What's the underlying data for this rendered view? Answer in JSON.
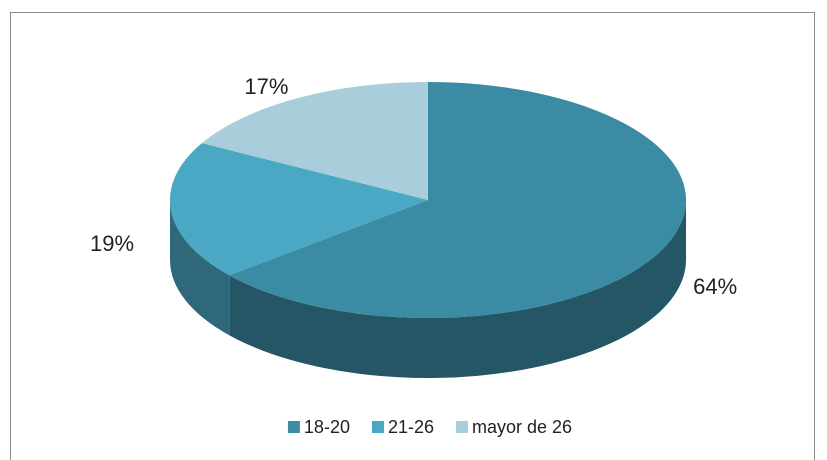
{
  "chart_data": {
    "type": "pie",
    "categories": [
      "18-20",
      "21-26",
      "mayor de 26"
    ],
    "values": [
      64,
      19,
      17
    ],
    "value_labels": [
      "64%",
      "19%",
      "17%"
    ],
    "colors": [
      "#3a8ba3",
      "#4aa8c4",
      "#a8cddb"
    ],
    "legend": "bottom"
  }
}
